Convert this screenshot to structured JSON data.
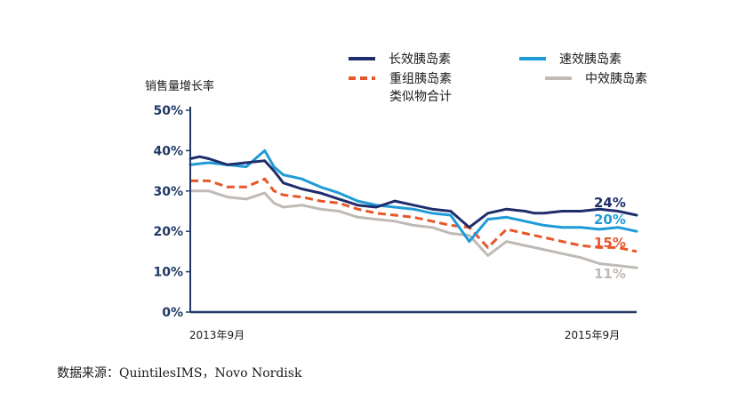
{
  "source_note": "数据来源：QuintilesIMS，Novo Nordisk",
  "chart_data": {
    "type": "line",
    "ylabel": "销售量增长率",
    "xlabel": "",
    "ylim": [
      0,
      50
    ],
    "yticks": [
      0,
      10,
      20,
      30,
      40,
      50
    ],
    "ytick_labels": [
      "0%",
      "10%",
      "20%",
      "30%",
      "40%",
      "50%"
    ],
    "x_range": [
      0,
      24
    ],
    "x_tick_labels": [
      {
        "x": 0,
        "label": "2013年9月"
      },
      {
        "x": 24,
        "label": "2015年9月"
      }
    ],
    "legend": [
      "长效胰岛素",
      "速效胰岛素",
      "重组胰岛素类似物合计",
      "中效胰岛素"
    ],
    "legend_lines": [
      {
        "series": "长效胰岛素",
        "lines": [
          "长效胰岛素"
        ]
      },
      {
        "series": "速效胰岛素",
        "lines": [
          "速效胰岛素"
        ]
      },
      {
        "series": "重组胰岛素类似物合计",
        "lines": [
          "重组胰岛素",
          "类似物合计"
        ]
      },
      {
        "series": "中效胰岛素",
        "lines": [
          "中效胰岛素"
        ]
      }
    ],
    "series": [
      {
        "name": "长效胰岛素",
        "color": "#1F2D6B",
        "dash": "solid",
        "end_label": "24%",
        "x": [
          0,
          0.5,
          1,
          2,
          3,
          4,
          4.5,
          5,
          6,
          7,
          8,
          9,
          10,
          11,
          12,
          13,
          14,
          15,
          16,
          17,
          18,
          18.5,
          19,
          20,
          21,
          22,
          23,
          24
        ],
        "y": [
          38,
          38.5,
          38,
          36.5,
          37,
          37.5,
          35,
          32,
          30.5,
          29.5,
          28,
          26.5,
          26,
          27.5,
          26.5,
          25.5,
          25,
          21,
          24.5,
          25.5,
          25,
          24.5,
          24.5,
          25,
          25,
          25.5,
          25,
          24
        ]
      },
      {
        "name": "速效胰岛素",
        "color": "#1E9BD7",
        "dash": "solid",
        "end_label": "20%",
        "x": [
          0,
          1,
          2,
          3,
          3.5,
          4,
          4.5,
          5,
          6,
          7,
          8,
          9,
          10,
          11,
          12,
          13,
          14,
          15,
          16,
          17,
          18,
          19,
          20,
          21,
          22,
          23,
          24
        ],
        "y": [
          36.5,
          37,
          36.5,
          36,
          38,
          40,
          36,
          34,
          33,
          31,
          29.5,
          27.5,
          26.5,
          26,
          25.5,
          24.5,
          24,
          17.5,
          23,
          23.5,
          22.5,
          21.5,
          21,
          21,
          20.5,
          21,
          20
        ]
      },
      {
        "name": "重组胰岛素类似物合计",
        "color": "#E8562A",
        "dash": "dashed",
        "end_label": "15%",
        "x": [
          0,
          1,
          2,
          3,
          4,
          4.5,
          5,
          6,
          7,
          8,
          9,
          10,
          11,
          12,
          13,
          14,
          15,
          16,
          17,
          18,
          19,
          20,
          21,
          22,
          23,
          24
        ],
        "y": [
          32.5,
          32.5,
          31,
          31,
          33,
          30,
          29,
          28.5,
          27.5,
          27,
          25.5,
          24.5,
          24,
          23.5,
          22.5,
          21.5,
          21,
          16,
          20.5,
          19.5,
          18.5,
          17.5,
          16.5,
          16,
          16,
          15
        ]
      },
      {
        "name": "中效胰岛素",
        "color": "#BFBAB5",
        "dash": "solid",
        "end_label": "11%",
        "x": [
          0,
          1,
          2,
          3,
          4,
          4.5,
          5,
          6,
          7,
          8,
          9,
          10,
          11,
          12,
          13,
          14,
          15,
          16,
          17,
          18,
          19,
          20,
          21,
          22,
          23,
          24
        ],
        "y": [
          30,
          30,
          28.5,
          28,
          29.5,
          27,
          26,
          26.5,
          25.5,
          25,
          23.5,
          23,
          22.5,
          21.5,
          21,
          19.5,
          19,
          14,
          17.5,
          16.5,
          15.5,
          14.5,
          13.5,
          12,
          11.5,
          11
        ]
      }
    ]
  }
}
